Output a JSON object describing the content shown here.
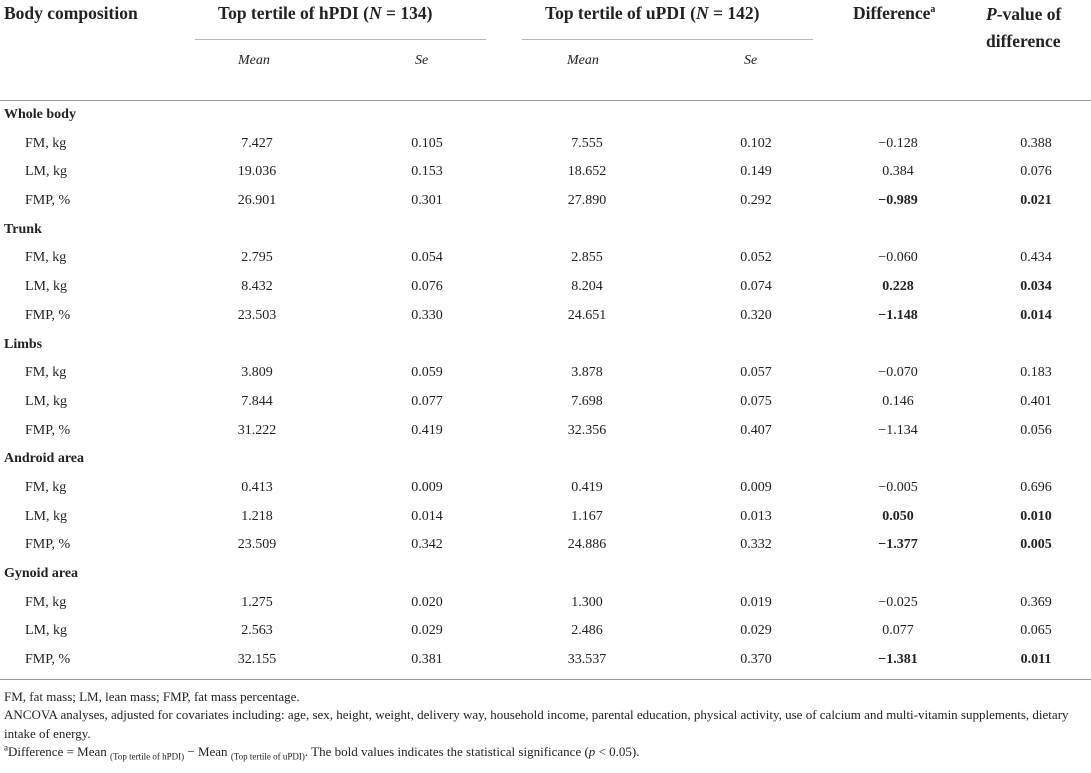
{
  "header": {
    "col0": "Body composition",
    "group1": "Top tertile of hPDI (N = 134)",
    "group1_pre": "Top tertile of hPDI (",
    "group1_n": "N",
    "group1_post": " = 134)",
    "group2_pre": "Top tertile of uPDI (",
    "group2_n": "N",
    "group2_post": " = 142)",
    "difference": "Difference",
    "difference_sup": "a",
    "pvalue_line1_italic": "P",
    "pvalue_line1_rest": "-value of",
    "pvalue_line2": "difference",
    "sub_mean1": "Mean",
    "sub_se1": "Se",
    "sub_mean2": "Mean",
    "sub_se2": "Se"
  },
  "sections": [
    {
      "title": "Whole body",
      "rows": [
        {
          "label": "FM, kg",
          "mean1": "7.427",
          "se1": "0.105",
          "mean2": "7.555",
          "se2": "0.102",
          "diff": "−0.128",
          "p": "0.388",
          "bold": false
        },
        {
          "label": "LM, kg",
          "mean1": "19.036",
          "se1": "0.153",
          "mean2": "18.652",
          "se2": "0.149",
          "diff": "0.384",
          "p": "0.076",
          "bold": false
        },
        {
          "label": "FMP, %",
          "mean1": "26.901",
          "se1": "0.301",
          "mean2": "27.890",
          "se2": "0.292",
          "diff": "−0.989",
          "p": "0.021",
          "bold": true
        }
      ]
    },
    {
      "title": "Trunk",
      "rows": [
        {
          "label": "FM, kg",
          "mean1": "2.795",
          "se1": "0.054",
          "mean2": "2.855",
          "se2": "0.052",
          "diff": "−0.060",
          "p": "0.434",
          "bold": false
        },
        {
          "label": "LM, kg",
          "mean1": "8.432",
          "se1": "0.076",
          "mean2": "8.204",
          "se2": "0.074",
          "diff": "0.228",
          "p": "0.034",
          "bold": true
        },
        {
          "label": "FMP, %",
          "mean1": "23.503",
          "se1": "0.330",
          "mean2": "24.651",
          "se2": "0.320",
          "diff": "−1.148",
          "p": "0.014",
          "bold": true
        }
      ]
    },
    {
      "title": "Limbs",
      "rows": [
        {
          "label": "FM, kg",
          "mean1": "3.809",
          "se1": "0.059",
          "mean2": "3.878",
          "se2": "0.057",
          "diff": "−0.070",
          "p": "0.183",
          "bold": false
        },
        {
          "label": "LM, kg",
          "mean1": "7.844",
          "se1": "0.077",
          "mean2": "7.698",
          "se2": "0.075",
          "diff": "0.146",
          "p": "0.401",
          "bold": false
        },
        {
          "label": "FMP, %",
          "mean1": "31.222",
          "se1": "0.419",
          "mean2": "32.356",
          "se2": "0.407",
          "diff": "−1.134",
          "p": "0.056",
          "bold": false
        }
      ]
    },
    {
      "title": "Android area",
      "rows": [
        {
          "label": "FM, kg",
          "mean1": "0.413",
          "se1": "0.009",
          "mean2": "0.419",
          "se2": "0.009",
          "diff": "−0.005",
          "p": "0.696",
          "bold": false
        },
        {
          "label": "LM, kg",
          "mean1": "1.218",
          "se1": "0.014",
          "mean2": "1.167",
          "se2": "0.013",
          "diff": "0.050",
          "p": "0.010",
          "bold": true
        },
        {
          "label": "FMP, %",
          "mean1": "23.509",
          "se1": "0.342",
          "mean2": "24.886",
          "se2": "0.332",
          "diff": "−1.377",
          "p": "0.005",
          "bold": true
        }
      ]
    },
    {
      "title": "Gynoid area",
      "rows": [
        {
          "label": "FM, kg",
          "mean1": "1.275",
          "se1": "0.020",
          "mean2": "1.300",
          "se2": "0.019",
          "diff": "−0.025",
          "p": "0.369",
          "bold": false
        },
        {
          "label": "LM, kg",
          "mean1": "2.563",
          "se1": "0.029",
          "mean2": "2.486",
          "se2": "0.029",
          "diff": "0.077",
          "p": "0.065",
          "bold": false
        },
        {
          "label": "FMP, %",
          "mean1": "32.155",
          "se1": "0.381",
          "mean2": "33.537",
          "se2": "0.370",
          "diff": "−1.381",
          "p": "0.011",
          "bold": true
        }
      ]
    }
  ],
  "footnotes": {
    "abbrev": "FM, fat mass; LM, lean mass; FMP, fat mass percentage.",
    "ancova": "ANCOVA analyses, adjusted for covariates including: age, sex, height, weight, delivery way, household income, parental education, physical activity, use of calcium and multi-vitamin supplements, dietary intake of energy.",
    "diff_sup": "a",
    "diff_a": "Difference = Mean ",
    "diff_sub1": "(Top tertile of hPDI)",
    "diff_mid": " − Mean ",
    "diff_sub2": "(Top tertile of uPDI)",
    "diff_end_pre": ". The bold values indicates the statistical significance (",
    "diff_p": "p",
    "diff_end_post": " < 0.05)."
  }
}
